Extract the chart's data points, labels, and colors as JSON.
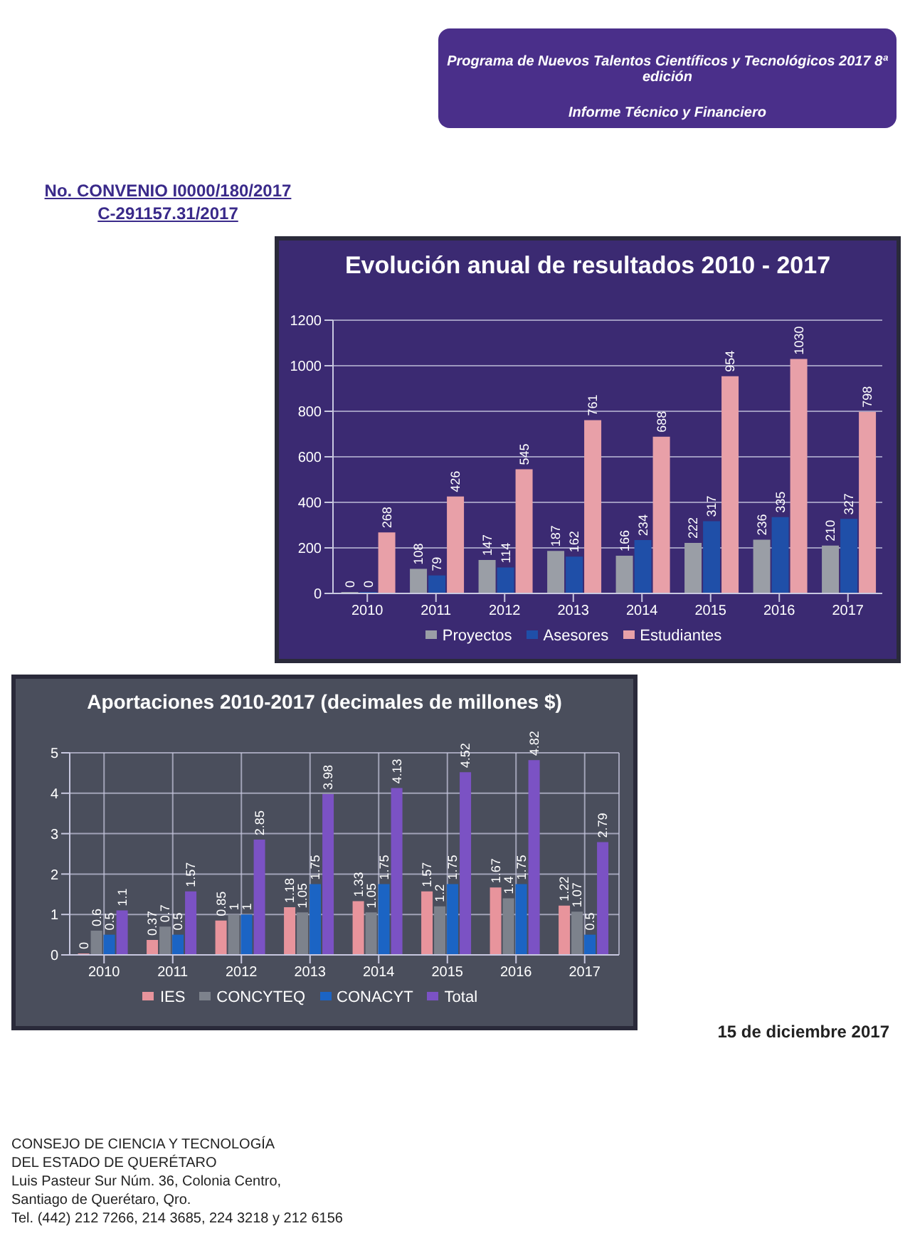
{
  "chart_data": [
    {
      "type": "bar",
      "title": "Evolución anual de resultados 2010 - 2017",
      "categories": [
        "2010",
        "2011",
        "2012",
        "2013",
        "2014",
        "2015",
        "2016",
        "2017"
      ],
      "series": [
        {
          "name": "Proyectos",
          "color": "#9a9ea6",
          "values": [
            0,
            108,
            147,
            187,
            166,
            222,
            236,
            210
          ]
        },
        {
          "name": "Asesores",
          "color": "#1f4fa8",
          "values": [
            0,
            79,
            114,
            162,
            234,
            317,
            335,
            327
          ]
        },
        {
          "name": "Estudiantes",
          "color": "#e8a0a8",
          "values": [
            268,
            426,
            545,
            761,
            688,
            954,
            1030,
            798
          ]
        }
      ],
      "ylim": [
        0,
        1200
      ],
      "yticks": [
        0,
        200,
        400,
        600,
        800,
        1000,
        1200
      ],
      "grid": "y",
      "legend": "bottom",
      "data_labels": true,
      "annotations": [
        "Programa de Nuevos Talentos Científicos y Tecnológicos 2017 8ª edición",
        "Informe Técnico y Financiero",
        "No. CONVENIO I0000/180/2017",
        "C-291157.31/2017"
      ]
    },
    {
      "type": "bar",
      "title": "Aportaciones 2010-2017 (decimales de millones $)",
      "categories": [
        "2010",
        "2011",
        "2012",
        "2013",
        "2014",
        "2015",
        "2016",
        "2017"
      ],
      "series": [
        {
          "name": "IES",
          "color": "#e8949c",
          "values": [
            0,
            0.37,
            0.85,
            1.18,
            1.33,
            1.57,
            1.67,
            1.22
          ]
        },
        {
          "name": "CONCYTEQ",
          "color": "#7d828c",
          "values": [
            0.6,
            0.7,
            1,
            1.05,
            1.05,
            1.2,
            1.4,
            1.07
          ]
        },
        {
          "name": "CONACYT",
          "color": "#1b64c4",
          "values": [
            0.5,
            0.5,
            1,
            1.75,
            1.75,
            1.75,
            1.75,
            0.5
          ]
        },
        {
          "name": "Total",
          "color": "#7b52c4",
          "values": [
            1.1,
            1.57,
            2.85,
            3.98,
            4.13,
            4.52,
            4.82,
            2.79
          ]
        }
      ],
      "ylim": [
        0,
        5
      ],
      "yticks": [
        0,
        1,
        2,
        3,
        4,
        5
      ],
      "grid": true,
      "legend": "bottom",
      "data_labels": true,
      "annotations": [
        "15 de diciembre 2017",
        "CONSEJO DE CIENCIA Y TECNOLOGÍA",
        "DEL ESTADO DE QUERÉTARO",
        "Luis Pasteur Sur Núm. 36, Colonia Centro,",
        "Santiago de Querétaro, Qro.",
        "Tel.  (442) 212 7266, 214 3685, 224 3218 y  212 6156"
      ]
    }
  ]
}
